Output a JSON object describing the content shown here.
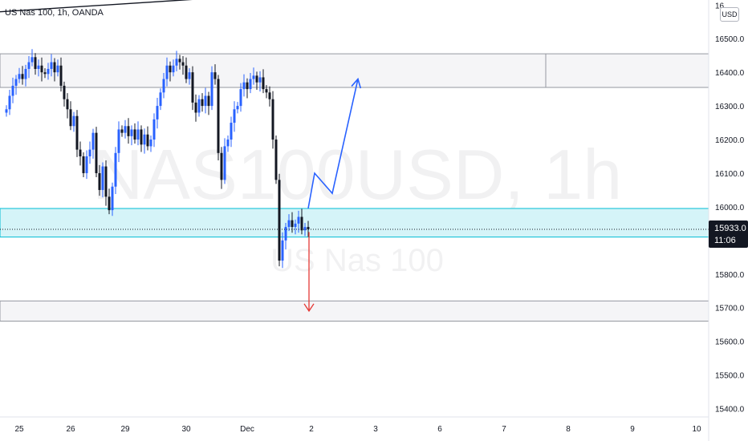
{
  "legend": {
    "symbol_line": "US Nas 100, 1h, OANDA"
  },
  "currency_button": "USD",
  "price_badge": {
    "price": "15933.0",
    "countdown": "11:06",
    "color": "#131722"
  },
  "watermark": {
    "ticker": "NAS100USD, 1h",
    "name": "US Nas 100"
  },
  "colors": {
    "up": "#2962ff",
    "down": "#131722",
    "trendline": "#131722",
    "demand_zone": "#b2ebf2",
    "demand_border": "#00bcd4",
    "supply_zone": "#eff0f3",
    "forecast_up": "#2962ff",
    "forecast_down": "#e53935"
  },
  "chart_data": {
    "type": "candlestick",
    "title": "US Nas 100, 1h, OANDA",
    "ylim": [
      15375,
      16615
    ],
    "y_ticks": [
      15400.0,
      15500.0,
      15600.0,
      15700.0,
      15800.0,
      15900.0,
      16000.0,
      16100.0,
      16200.0,
      16300.0,
      16400.0,
      16500.0
    ],
    "y_tick_labels": [
      "15400.0",
      "15500.0",
      "15600.0",
      "15700.0",
      "15800.0",
      "15900.0",
      "16000.0",
      "16100.0",
      "16200.0",
      "16300.0",
      "16400.0",
      "16500.0"
    ],
    "x_ticks": [
      {
        "label": "25",
        "bar": 4
      },
      {
        "label": "26",
        "bar": 20
      },
      {
        "label": "29",
        "bar": 37
      },
      {
        "label": "30",
        "bar": 56
      },
      {
        "label": "Dec",
        "bar": 75
      },
      {
        "label": "2",
        "bar": 95
      },
      {
        "label": "3",
        "bar": 115
      },
      {
        "label": "6",
        "bar": 135
      },
      {
        "label": "7",
        "bar": 155
      },
      {
        "label": "8",
        "bar": 175
      },
      {
        "label": "9",
        "bar": 195
      },
      {
        "label": "10",
        "bar": 215
      }
    ],
    "closes": [
      16290,
      16330,
      16360,
      16380,
      16395,
      16380,
      16410,
      16430,
      16445,
      16410,
      16420,
      16400,
      16395,
      16410,
      16430,
      16400,
      16420,
      16360,
      16320,
      16290,
      16240,
      16270,
      16170,
      16150,
      16100,
      16150,
      16170,
      16220,
      16100,
      16050,
      16120,
      16030,
      15990,
      16060,
      16160,
      16230,
      16220,
      16240,
      16210,
      16230,
      16200,
      16230,
      16185,
      16215,
      16180,
      16200,
      16260,
      16300,
      16340,
      16380,
      16420,
      16400,
      16420,
      16440,
      16430,
      16420,
      16380,
      16400,
      16310,
      16280,
      16320,
      16300,
      16330,
      16300,
      16400,
      16380,
      16160,
      16080,
      16180,
      16200,
      16250,
      16290,
      16300,
      16350,
      16370,
      16350,
      16380,
      16390,
      16370,
      16385,
      16350,
      16340,
      16320,
      16200,
      16080,
      15840,
      15900,
      15940,
      15960,
      15940,
      15950,
      15970,
      15930,
      15940,
      15933
    ],
    "forecast_up": [
      [
        0,
        15995
      ],
      [
        0,
        16100
      ],
      [
        0,
        16040
      ],
      [
        0,
        16380
      ]
    ],
    "forecast_down": {
      "from": 15925,
      "to": 15690
    },
    "zones": [
      {
        "name": "supply",
        "from": 16355,
        "to": 16455
      },
      {
        "name": "demand",
        "from": 15910,
        "to": 15995
      },
      {
        "name": "support",
        "from": 15660,
        "to": 15720
      }
    ],
    "trendline": [
      [
        16580
      ],
      [
        16715
      ]
    ],
    "last_price": 15933.0
  }
}
